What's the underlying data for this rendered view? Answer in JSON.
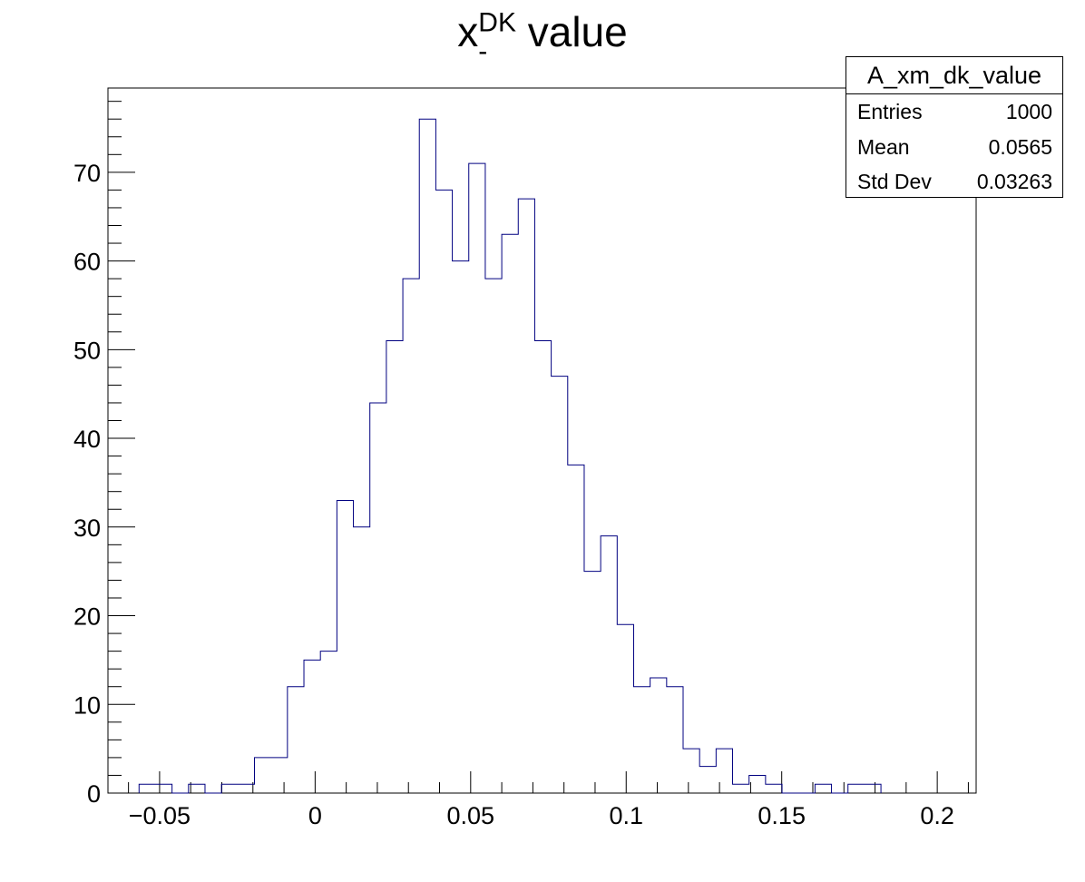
{
  "chart_data": {
    "type": "bar",
    "title": {
      "main": "x",
      "subscript": "-",
      "superscript": "DK",
      "suffix": " value"
    },
    "xlabel": "",
    "ylabel": "",
    "xlim": [
      -0.0666,
      0.2125
    ],
    "ylim": [
      0,
      79.5
    ],
    "bin_edges_start": -0.0566,
    "bin_width": 0.0053,
    "x_ticks": [
      {
        "value": -0.05,
        "label": "−0.05"
      },
      {
        "value": 0,
        "label": "0"
      },
      {
        "value": 0.05,
        "label": "0.05"
      },
      {
        "value": 0.1,
        "label": "0.1"
      },
      {
        "value": 0.15,
        "label": "0.15"
      },
      {
        "value": 0.2,
        "label": "0.2"
      }
    ],
    "y_ticks": [
      {
        "value": 0,
        "label": "0"
      },
      {
        "value": 10,
        "label": "10"
      },
      {
        "value": 20,
        "label": "20"
      },
      {
        "value": 30,
        "label": "30"
      },
      {
        "value": 40,
        "label": "40"
      },
      {
        "value": 50,
        "label": "50"
      },
      {
        "value": 60,
        "label": "60"
      },
      {
        "value": 70,
        "label": "70"
      }
    ],
    "values": [
      1,
      1,
      0,
      1,
      0,
      1,
      1,
      4,
      4,
      12,
      15,
      16,
      33,
      30,
      44,
      51,
      58,
      76,
      68,
      60,
      71,
      58,
      63,
      67,
      51,
      47,
      37,
      25,
      29,
      19,
      12,
      13,
      12,
      5,
      3,
      5,
      1,
      2,
      1,
      0,
      0,
      1,
      0,
      1,
      1
    ],
    "line_color": "#000080",
    "grid": false,
    "legend": "none"
  },
  "stats_box": {
    "name": "A_xm_dk_value",
    "rows": [
      {
        "label": "Entries",
        "value": "1000"
      },
      {
        "label": "Mean",
        "value": "0.0565"
      },
      {
        "label": "Std Dev",
        "value": "0.03263"
      }
    ]
  }
}
